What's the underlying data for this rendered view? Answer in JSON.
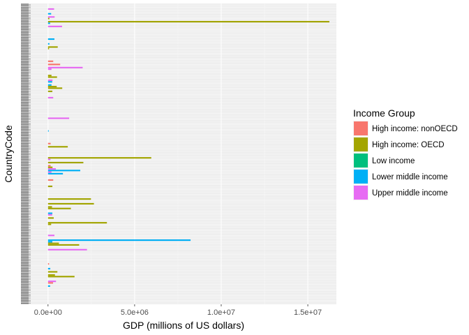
{
  "chart_data": {
    "type": "bar",
    "orientation": "horizontal",
    "xlabel": "GDP (millions of US dollars)",
    "ylabel": "CountryCode",
    "xlim": [
      -1000000,
      16650000
    ],
    "xticks": [
      {
        "value": 0,
        "label": "0.0e+00"
      },
      {
        "value": 5000000,
        "label": "5.0e+06"
      },
      {
        "value": 10000000,
        "label": "1.0e+07"
      },
      {
        "value": 15000000,
        "label": "1.5e+07"
      }
    ],
    "category_count": 190,
    "category_tick_labels_legible": false,
    "grid": true,
    "legend": {
      "title": "Income Group",
      "placement": "right",
      "entries": [
        {
          "name": "High income: nonOECD",
          "color": "#F8766D"
        },
        {
          "name": "High income: OECD",
          "color": "#A3A500"
        },
        {
          "name": "Low income",
          "color": "#00BF7D"
        },
        {
          "name": "Lower middle income",
          "color": "#00B0F6"
        },
        {
          "name": "Upper middle income",
          "color": "#E76BF3"
        }
      ]
    },
    "colors": {
      "panel_background": "#EBEBEB",
      "grid_major": "#FFFFFF",
      "axis_text": "#4D4D4D"
    },
    "bars": [
      {
        "category": 3,
        "group": "Upper middle income",
        "value": 350000
      },
      {
        "category": 6,
        "group": "Lower middle income",
        "value": 180000
      },
      {
        "category": 8,
        "group": "Upper middle income",
        "value": 380000
      },
      {
        "category": 9,
        "group": "High income: OECD",
        "value": 80000
      },
      {
        "category": 11,
        "group": "High income: OECD",
        "value": 16245000
      },
      {
        "category": 12,
        "group": "Lower middle income",
        "value": 120000
      },
      {
        "category": 14,
        "group": "Upper middle income",
        "value": 810000
      },
      {
        "category": 22,
        "group": "Lower middle income",
        "value": 370000
      },
      {
        "category": 25,
        "group": "Lower middle income",
        "value": 80000
      },
      {
        "category": 27,
        "group": "High income: OECD",
        "value": 560000
      },
      {
        "category": 28,
        "group": "High income: OECD",
        "value": 60000
      },
      {
        "category": 36,
        "group": "High income: nonOECD",
        "value": 300000
      },
      {
        "category": 38,
        "group": "High income: nonOECD",
        "value": 700000
      },
      {
        "category": 40,
        "group": "Upper middle income",
        "value": 2000000
      },
      {
        "category": 41,
        "group": "Upper middle income",
        "value": 200000
      },
      {
        "category": 45,
        "group": "High income: OECD",
        "value": 200000
      },
      {
        "category": 46,
        "group": "High income: OECD",
        "value": 520000
      },
      {
        "category": 48,
        "group": "Upper middle income",
        "value": 260000
      },
      {
        "category": 49,
        "group": "Lower middle income",
        "value": 240000
      },
      {
        "category": 51,
        "group": "Lower middle income",
        "value": 200000
      },
      {
        "category": 52,
        "group": "High income: OECD",
        "value": 500000
      },
      {
        "category": 53,
        "group": "High income: OECD",
        "value": 820000
      },
      {
        "category": 55,
        "group": "High income: OECD",
        "value": 250000
      },
      {
        "category": 59,
        "group": "Upper middle income",
        "value": 300000
      },
      {
        "category": 72,
        "group": "Upper middle income",
        "value": 1220000
      },
      {
        "category": 80,
        "group": "Lower middle income",
        "value": 40000
      },
      {
        "category": 88,
        "group": "High income: nonOECD",
        "value": 150000
      },
      {
        "category": 90,
        "group": "High income: OECD",
        "value": 1140000
      },
      {
        "category": 97,
        "group": "High income: OECD",
        "value": 5960000
      },
      {
        "category": 98,
        "group": "Upper middle income",
        "value": 140000
      },
      {
        "category": 100,
        "group": "High income: OECD",
        "value": 2040000
      },
      {
        "category": 102,
        "group": "High income: nonOECD",
        "value": 150000
      },
      {
        "category": 103,
        "group": "High income: OECD",
        "value": 260000
      },
      {
        "category": 104,
        "group": "Upper middle income",
        "value": 450000
      },
      {
        "category": 105,
        "group": "Lower middle income",
        "value": 1860000
      },
      {
        "category": 106,
        "group": "Upper middle income",
        "value": 200000
      },
      {
        "category": 107,
        "group": "Lower middle income",
        "value": 860000
      },
      {
        "category": 111,
        "group": "High income: nonOECD",
        "value": 300000
      },
      {
        "category": 115,
        "group": "High income: OECD",
        "value": 250000
      },
      {
        "category": 123,
        "group": "High income: OECD",
        "value": 2480000
      },
      {
        "category": 126,
        "group": "High income: OECD",
        "value": 2650000
      },
      {
        "category": 128,
        "group": "High income: OECD",
        "value": 230000
      },
      {
        "category": 129,
        "group": "High income: OECD",
        "value": 1320000
      },
      {
        "category": 132,
        "group": "Lower middle income",
        "value": 250000
      },
      {
        "category": 133,
        "group": "Upper middle income",
        "value": 240000
      },
      {
        "category": 135,
        "group": "High income: OECD",
        "value": 330000
      },
      {
        "category": 138,
        "group": "High income: OECD",
        "value": 3400000
      },
      {
        "category": 139,
        "group": "High income: OECD",
        "value": 180000
      },
      {
        "category": 146,
        "group": "Upper middle income",
        "value": 370000
      },
      {
        "category": 149,
        "group": "Lower middle income",
        "value": 8230000
      },
      {
        "category": 150,
        "group": "Lower middle income",
        "value": 250000
      },
      {
        "category": 151,
        "group": "High income: OECD",
        "value": 630000
      },
      {
        "category": 152,
        "group": "High income: OECD",
        "value": 1800000
      },
      {
        "category": 155,
        "group": "Upper middle income",
        "value": 2250000
      },
      {
        "category": 164,
        "group": "High income: nonOECD",
        "value": 60000
      },
      {
        "category": 167,
        "group": "Lower middle income",
        "value": 130000
      },
      {
        "category": 169,
        "group": "High income: OECD",
        "value": 540000
      },
      {
        "category": 171,
        "group": "High income: OECD",
        "value": 400000
      },
      {
        "category": 172,
        "group": "High income: OECD",
        "value": 1530000
      },
      {
        "category": 175,
        "group": "Upper middle income",
        "value": 460000
      },
      {
        "category": 176,
        "group": "High income: nonOECD",
        "value": 290000
      },
      {
        "category": 178,
        "group": "Lower middle income",
        "value": 120000
      }
    ]
  }
}
